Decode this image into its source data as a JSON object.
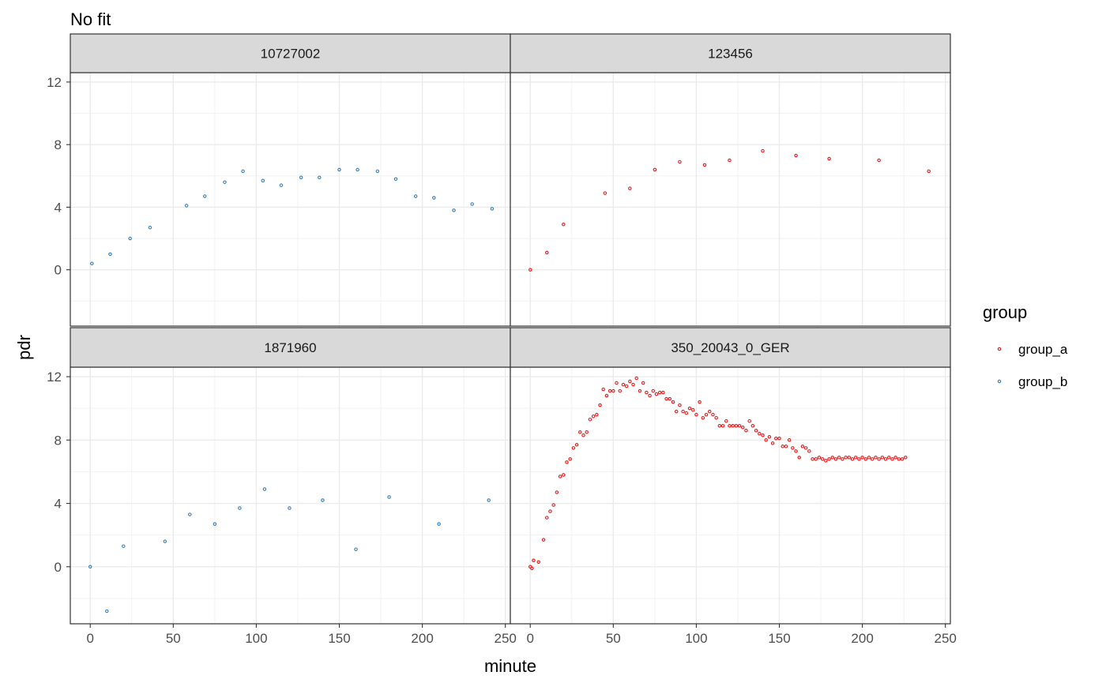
{
  "chart_data": {
    "type": "scatter",
    "title": "No fit",
    "xlabel": "minute",
    "ylabel": "pdr",
    "xlim": [
      -12,
      253
    ],
    "ylim": [
      -3.6,
      12.6
    ],
    "x_ticks": [
      0,
      50,
      100,
      150,
      200,
      250
    ],
    "y_ticks": [
      0,
      4,
      8,
      12
    ],
    "grid": true,
    "legend": {
      "title": "group",
      "placement": "right",
      "entries": [
        {
          "name": "group_a",
          "color": "#e41a1c"
        },
        {
          "name": "group_b",
          "color": "#377eb8"
        }
      ]
    },
    "panels": [
      {
        "label": "10727002",
        "group": "group_b",
        "x": [
          1,
          12,
          24,
          36,
          58,
          69,
          81,
          92,
          104,
          115,
          127,
          138,
          150,
          161,
          173,
          184,
          196,
          207,
          219,
          230,
          242
        ],
        "y": [
          0.4,
          1.0,
          2.0,
          2.7,
          4.1,
          4.7,
          5.6,
          6.3,
          5.7,
          5.4,
          5.9,
          5.9,
          6.4,
          6.4,
          6.3,
          5.8,
          4.7,
          4.6,
          3.8,
          4.2,
          3.9
        ]
      },
      {
        "label": "123456",
        "group": "group_a",
        "x": [
          0,
          10,
          20,
          45,
          60,
          75,
          90,
          105,
          120,
          140,
          160,
          180,
          210,
          240
        ],
        "y": [
          0.0,
          1.1,
          2.9,
          4.9,
          5.2,
          6.4,
          6.9,
          6.7,
          7.0,
          7.6,
          7.3,
          7.1,
          7.0,
          6.3
        ]
      },
      {
        "label": "1871960",
        "group": "group_b",
        "x": [
          0,
          10,
          20,
          45,
          60,
          75,
          90,
          105,
          120,
          140,
          160,
          180,
          210,
          240
        ],
        "y": [
          0.0,
          -2.8,
          1.3,
          1.6,
          3.3,
          2.7,
          3.7,
          4.9,
          3.7,
          4.2,
          1.1,
          4.4,
          2.7,
          4.2
        ]
      },
      {
        "label": "350_20043_0_GER",
        "group": "group_a",
        "x": [
          0,
          1,
          2,
          5,
          8,
          10,
          12,
          14,
          16,
          18,
          20,
          22,
          24,
          26,
          28,
          30,
          32,
          34,
          36,
          38,
          40,
          42,
          44,
          46,
          48,
          50,
          52,
          54,
          56,
          58,
          60,
          62,
          64,
          66,
          68,
          70,
          72,
          74,
          76,
          78,
          80,
          82,
          84,
          86,
          88,
          90,
          92,
          94,
          96,
          98,
          100,
          102,
          104,
          106,
          108,
          110,
          112,
          114,
          116,
          118,
          120,
          122,
          124,
          126,
          128,
          130,
          132,
          134,
          136,
          138,
          140,
          142,
          144,
          146,
          148,
          150,
          152,
          154,
          156,
          158,
          160,
          162,
          164,
          166,
          168,
          170,
          172,
          174,
          176,
          178,
          180,
          182,
          184,
          186,
          188,
          190,
          192,
          194,
          196,
          198,
          200,
          202,
          204,
          206,
          208,
          210,
          212,
          214,
          216,
          218,
          220,
          222,
          224,
          226
        ],
        "y": [
          0.0,
          -0.1,
          0.4,
          0.3,
          1.7,
          3.1,
          3.5,
          3.9,
          4.7,
          5.7,
          5.8,
          6.6,
          6.8,
          7.5,
          7.7,
          8.5,
          8.3,
          8.5,
          9.3,
          9.5,
          9.6,
          10.2,
          11.2,
          10.8,
          11.1,
          11.1,
          11.6,
          11.1,
          11.5,
          11.4,
          11.7,
          11.5,
          11.9,
          11.1,
          11.6,
          11.0,
          10.8,
          11.1,
          10.9,
          11.0,
          11.0,
          10.6,
          10.6,
          10.4,
          9.8,
          10.2,
          9.8,
          9.7,
          10.0,
          9.9,
          9.6,
          10.4,
          9.4,
          9.6,
          9.8,
          9.6,
          9.4,
          8.9,
          8.9,
          9.2,
          8.9,
          8.9,
          8.9,
          8.9,
          8.8,
          8.6,
          9.2,
          8.9,
          8.6,
          8.4,
          8.3,
          8.0,
          8.2,
          7.8,
          8.1,
          8.1,
          7.6,
          7.6,
          8.0,
          7.5,
          7.3,
          6.9,
          7.6,
          7.5,
          7.3,
          6.8,
          6.8,
          6.9,
          6.8,
          6.7,
          6.8,
          6.9,
          6.8,
          6.9,
          6.8,
          6.9,
          6.9,
          6.8,
          6.9,
          6.8,
          6.9,
          6.8,
          6.9,
          6.8,
          6.9,
          6.8,
          6.9,
          6.8,
          6.9,
          6.8,
          6.9,
          6.8,
          6.8,
          6.9
        ]
      }
    ]
  }
}
